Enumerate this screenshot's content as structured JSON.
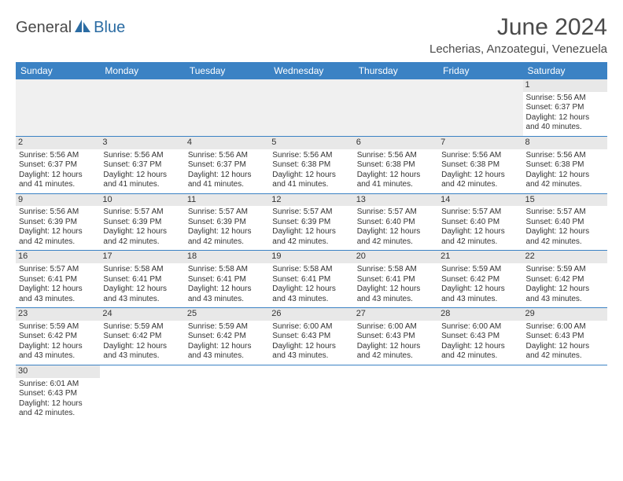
{
  "logo": {
    "part1": "General",
    "part2": "Blue"
  },
  "title": "June 2024",
  "location": "Lecherias, Anzoategui, Venezuela",
  "colors": {
    "header_bg": "#3b82c4",
    "header_fg": "#ffffff",
    "daynum_bg": "#e8e8e8",
    "row_border": "#3b82c4",
    "logo_gray": "#4a4a4a",
    "logo_blue": "#2b6ca3"
  },
  "weekdays": [
    "Sunday",
    "Monday",
    "Tuesday",
    "Wednesday",
    "Thursday",
    "Friday",
    "Saturday"
  ],
  "days": {
    "1": {
      "sunrise": "5:56 AM",
      "sunset": "6:37 PM",
      "daylight": "12 hours and 40 minutes."
    },
    "2": {
      "sunrise": "5:56 AM",
      "sunset": "6:37 PM",
      "daylight": "12 hours and 41 minutes."
    },
    "3": {
      "sunrise": "5:56 AM",
      "sunset": "6:37 PM",
      "daylight": "12 hours and 41 minutes."
    },
    "4": {
      "sunrise": "5:56 AM",
      "sunset": "6:37 PM",
      "daylight": "12 hours and 41 minutes."
    },
    "5": {
      "sunrise": "5:56 AM",
      "sunset": "6:38 PM",
      "daylight": "12 hours and 41 minutes."
    },
    "6": {
      "sunrise": "5:56 AM",
      "sunset": "6:38 PM",
      "daylight": "12 hours and 41 minutes."
    },
    "7": {
      "sunrise": "5:56 AM",
      "sunset": "6:38 PM",
      "daylight": "12 hours and 42 minutes."
    },
    "8": {
      "sunrise": "5:56 AM",
      "sunset": "6:38 PM",
      "daylight": "12 hours and 42 minutes."
    },
    "9": {
      "sunrise": "5:56 AM",
      "sunset": "6:39 PM",
      "daylight": "12 hours and 42 minutes."
    },
    "10": {
      "sunrise": "5:57 AM",
      "sunset": "6:39 PM",
      "daylight": "12 hours and 42 minutes."
    },
    "11": {
      "sunrise": "5:57 AM",
      "sunset": "6:39 PM",
      "daylight": "12 hours and 42 minutes."
    },
    "12": {
      "sunrise": "5:57 AM",
      "sunset": "6:39 PM",
      "daylight": "12 hours and 42 minutes."
    },
    "13": {
      "sunrise": "5:57 AM",
      "sunset": "6:40 PM",
      "daylight": "12 hours and 42 minutes."
    },
    "14": {
      "sunrise": "5:57 AM",
      "sunset": "6:40 PM",
      "daylight": "12 hours and 42 minutes."
    },
    "15": {
      "sunrise": "5:57 AM",
      "sunset": "6:40 PM",
      "daylight": "12 hours and 42 minutes."
    },
    "16": {
      "sunrise": "5:57 AM",
      "sunset": "6:41 PM",
      "daylight": "12 hours and 43 minutes."
    },
    "17": {
      "sunrise": "5:58 AM",
      "sunset": "6:41 PM",
      "daylight": "12 hours and 43 minutes."
    },
    "18": {
      "sunrise": "5:58 AM",
      "sunset": "6:41 PM",
      "daylight": "12 hours and 43 minutes."
    },
    "19": {
      "sunrise": "5:58 AM",
      "sunset": "6:41 PM",
      "daylight": "12 hours and 43 minutes."
    },
    "20": {
      "sunrise": "5:58 AM",
      "sunset": "6:41 PM",
      "daylight": "12 hours and 43 minutes."
    },
    "21": {
      "sunrise": "5:59 AM",
      "sunset": "6:42 PM",
      "daylight": "12 hours and 43 minutes."
    },
    "22": {
      "sunrise": "5:59 AM",
      "sunset": "6:42 PM",
      "daylight": "12 hours and 43 minutes."
    },
    "23": {
      "sunrise": "5:59 AM",
      "sunset": "6:42 PM",
      "daylight": "12 hours and 43 minutes."
    },
    "24": {
      "sunrise": "5:59 AM",
      "sunset": "6:42 PM",
      "daylight": "12 hours and 43 minutes."
    },
    "25": {
      "sunrise": "5:59 AM",
      "sunset": "6:42 PM",
      "daylight": "12 hours and 43 minutes."
    },
    "26": {
      "sunrise": "6:00 AM",
      "sunset": "6:43 PM",
      "daylight": "12 hours and 43 minutes."
    },
    "27": {
      "sunrise": "6:00 AM",
      "sunset": "6:43 PM",
      "daylight": "12 hours and 42 minutes."
    },
    "28": {
      "sunrise": "6:00 AM",
      "sunset": "6:43 PM",
      "daylight": "12 hours and 42 minutes."
    },
    "29": {
      "sunrise": "6:00 AM",
      "sunset": "6:43 PM",
      "daylight": "12 hours and 42 minutes."
    },
    "30": {
      "sunrise": "6:01 AM",
      "sunset": "6:43 PM",
      "daylight": "12 hours and 42 minutes."
    }
  },
  "labels": {
    "sunrise_prefix": "Sunrise: ",
    "sunset_prefix": "Sunset: ",
    "daylight_prefix": "Daylight: "
  },
  "layout": {
    "first_weekday_index": 6,
    "num_days": 30,
    "columns": 7
  },
  "typography": {
    "title_fontsize": 30,
    "location_fontsize": 15,
    "header_fontsize": 12,
    "daynum_fontsize": 11,
    "cell_fontsize": 10
  }
}
